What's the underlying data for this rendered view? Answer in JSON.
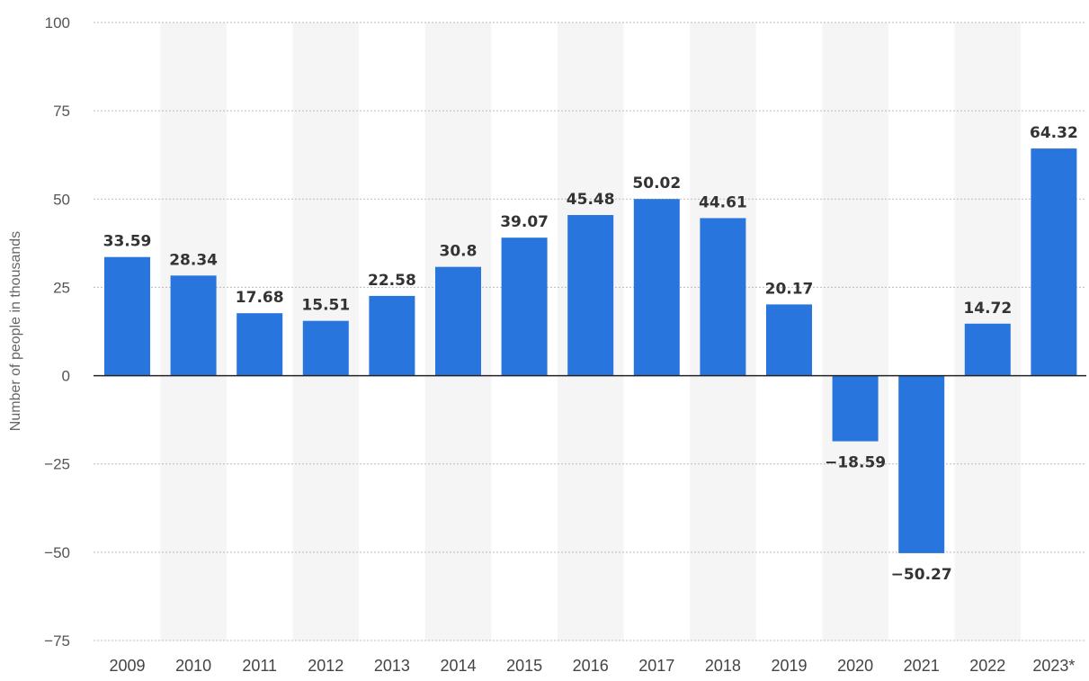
{
  "chart_data": {
    "type": "bar",
    "title": "",
    "xlabel": "",
    "ylabel": "Number of people in thousands",
    "categories": [
      "2009",
      "2010",
      "2011",
      "2012",
      "2013",
      "2014",
      "2015",
      "2016",
      "2017",
      "2018",
      "2019",
      "2020",
      "2021",
      "2022",
      "2023*"
    ],
    "values": [
      33.59,
      28.34,
      17.68,
      15.51,
      22.58,
      30.8,
      39.07,
      45.48,
      50.02,
      44.61,
      20.17,
      -18.59,
      -50.27,
      14.72,
      64.32
    ],
    "value_labels": [
      "33.59",
      "28.34",
      "17.68",
      "15.51",
      "22.58",
      "30.8",
      "39.07",
      "45.48",
      "50.02",
      "44.61",
      "20.17",
      "−18.59",
      "−50.27",
      "14.72",
      "64.32"
    ],
    "ylim": [
      -75,
      100
    ],
    "yticks": [
      100,
      75,
      50,
      25,
      0,
      -25,
      -50,
      -75
    ],
    "ytick_labels": [
      "100",
      "75",
      "50",
      "25",
      "0",
      "−25",
      "−50",
      "−75"
    ],
    "grid": true,
    "legend": "none",
    "colors": {
      "bar": "#2876dd",
      "band": "#f5f5f5",
      "grid": "#bbbbbb",
      "zero_line": "#222222"
    }
  }
}
